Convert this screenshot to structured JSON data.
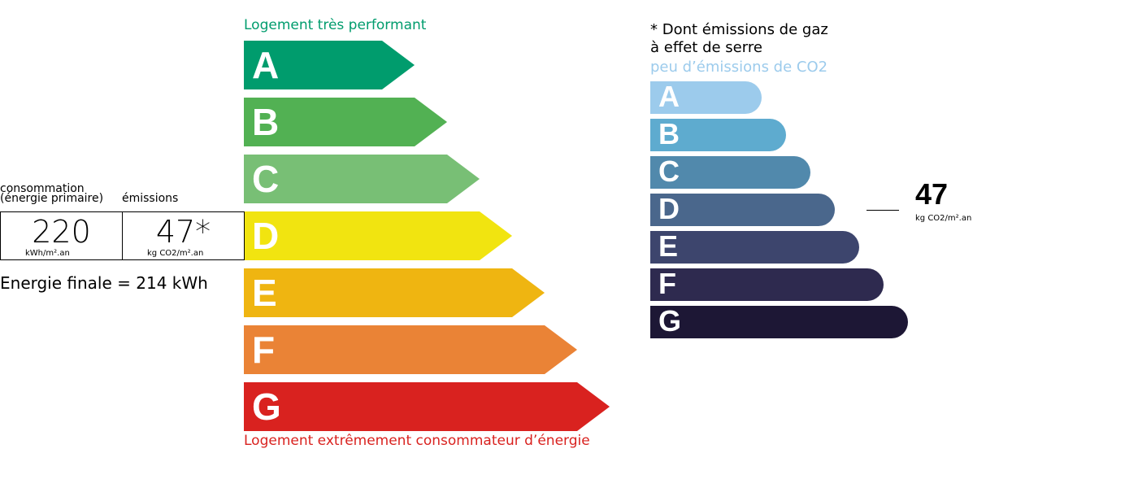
{
  "energy": {
    "top_label": "Logement très performant",
    "bottom_label": "Logement extrêmement consommateur d’énergie",
    "top_color": "#009c6d",
    "bottom_color": "#d9221f",
    "classes": [
      {
        "letter": "A",
        "color": "#009c6d"
      },
      {
        "letter": "B",
        "color": "#52b153"
      },
      {
        "letter": "C",
        "color": "#78bf75"
      },
      {
        "letter": "D",
        "color": "#f1e410"
      },
      {
        "letter": "E",
        "color": "#efb511"
      },
      {
        "letter": "F",
        "color": "#ea8336"
      },
      {
        "letter": "G",
        "color": "#d9221f"
      }
    ]
  },
  "summary": {
    "consumption_label_1": "consommation",
    "consumption_label_2": "(énergie primaire)",
    "emissions_label": "émissions",
    "consumption_value": "220",
    "consumption_unit": "kWh/m².an",
    "emissions_value": "47*",
    "emissions_unit": "kg CO2/m².an",
    "final_energy": "Energie finale = 214 kWh"
  },
  "ges": {
    "note_1": "* Dont émissions de gaz",
    "note_2": "à effet de serre",
    "top_label": "peu d’émissions de CO2",
    "top_color": "#9ccbec",
    "value": "47",
    "unit": "kg CO2/m².an",
    "current_class": "D",
    "classes": [
      {
        "letter": "A",
        "color": "#9ccbec"
      },
      {
        "letter": "B",
        "color": "#5eabcf"
      },
      {
        "letter": "C",
        "color": "#5189ac"
      },
      {
        "letter": "D",
        "color": "#4a678c"
      },
      {
        "letter": "E",
        "color": "#3d456d"
      },
      {
        "letter": "F",
        "color": "#2e2a4f"
      },
      {
        "letter": "G",
        "color": "#1d1735"
      }
    ]
  }
}
